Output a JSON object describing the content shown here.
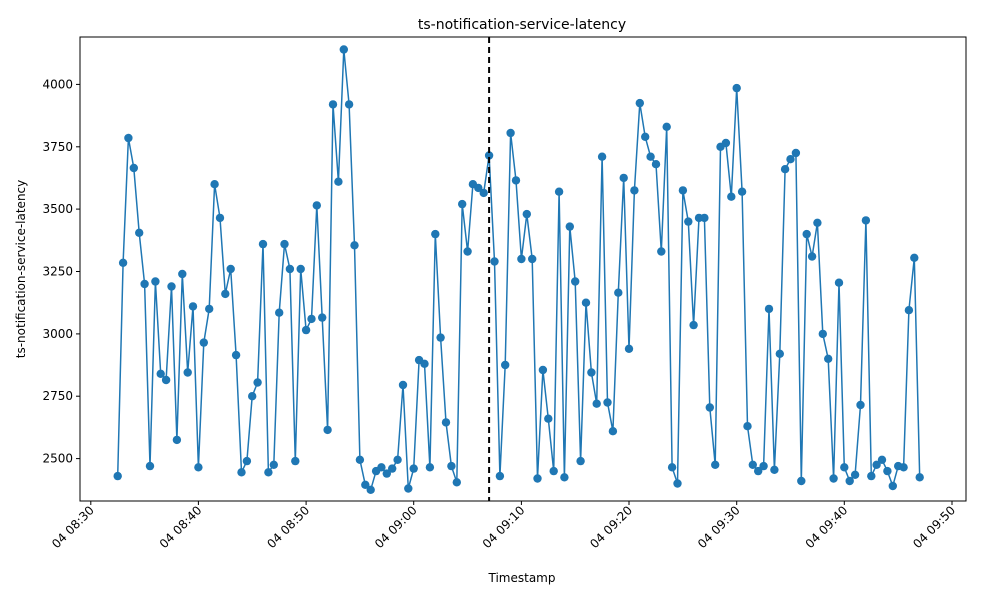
{
  "chart_data": {
    "type": "line",
    "title": "ts-notification-service-latency",
    "xlabel": "Timestamp",
    "ylabel": "ts-notification-service-latency",
    "x_ticks": [
      "04 08:30",
      "04 08:40",
      "04 08:50",
      "04 09:00",
      "04 09:10",
      "04 09:20",
      "04 09:30",
      "04 09:40",
      "04 09:50"
    ],
    "y_ticks": [
      2500,
      2750,
      3000,
      3250,
      3500,
      3750,
      4000
    ],
    "ylim": [
      2330,
      4190
    ],
    "xlim_minutes_after_0830": [
      -1,
      81.3
    ],
    "grid": false,
    "marker": "circle",
    "series_color": "#1f77b4",
    "vline": {
      "time": "04 09:07",
      "style": "dashed",
      "color": "#000000"
    },
    "series": [
      {
        "values": [
          [
            "04 08:32:30",
            2430
          ],
          [
            "04 08:33:00",
            3285
          ],
          [
            "04 08:33:30",
            3785
          ],
          [
            "04 08:34:00",
            3665
          ],
          [
            "04 08:34:30",
            3405
          ],
          [
            "04 08:35:00",
            3200
          ],
          [
            "04 08:35:30",
            2470
          ],
          [
            "04 08:36:00",
            3210
          ],
          [
            "04 08:36:30",
            2840
          ],
          [
            "04 08:37:00",
            2815
          ],
          [
            "04 08:37:30",
            3190
          ],
          [
            "04 08:38:00",
            2575
          ],
          [
            "04 08:38:30",
            3240
          ],
          [
            "04 08:39:00",
            2845
          ],
          [
            "04 08:39:30",
            3110
          ],
          [
            "04 08:40:00",
            2465
          ],
          [
            "04 08:40:30",
            2965
          ],
          [
            "04 08:41:00",
            3100
          ],
          [
            "04 08:41:30",
            3600
          ],
          [
            "04 08:42:00",
            3465
          ],
          [
            "04 08:42:30",
            3160
          ],
          [
            "04 08:43:00",
            3260
          ],
          [
            "04 08:43:30",
            2915
          ],
          [
            "04 08:44:00",
            2445
          ],
          [
            "04 08:44:30",
            2490
          ],
          [
            "04 08:45:00",
            2750
          ],
          [
            "04 08:45:30",
            2805
          ],
          [
            "04 08:46:00",
            3360
          ],
          [
            "04 08:46:30",
            2445
          ],
          [
            "04 08:47:00",
            2475
          ],
          [
            "04 08:47:30",
            3085
          ],
          [
            "04 08:48:00",
            3360
          ],
          [
            "04 08:48:30",
            3260
          ],
          [
            "04 08:49:00",
            2490
          ],
          [
            "04 08:49:30",
            3260
          ],
          [
            "04 08:50:00",
            3015
          ],
          [
            "04 08:50:30",
            3060
          ],
          [
            "04 08:51:00",
            3515
          ],
          [
            "04 08:51:30",
            3065
          ],
          [
            "04 08:52:00",
            2615
          ],
          [
            "04 08:52:30",
            3920
          ],
          [
            "04 08:53:00",
            3610
          ],
          [
            "04 08:53:30",
            4140
          ],
          [
            "04 08:54:00",
            3920
          ],
          [
            "04 08:54:30",
            3355
          ],
          [
            "04 08:55:00",
            2495
          ],
          [
            "04 08:55:30",
            2395
          ],
          [
            "04 08:56:00",
            2375
          ],
          [
            "04 08:56:30",
            2450
          ],
          [
            "04 08:57:00",
            2465
          ],
          [
            "04 08:57:30",
            2440
          ],
          [
            "04 08:58:00",
            2460
          ],
          [
            "04 08:58:30",
            2495
          ],
          [
            "04 08:59:00",
            2795
          ],
          [
            "04 08:59:30",
            2380
          ],
          [
            "04 09:00:00",
            2460
          ],
          [
            "04 09:00:30",
            2895
          ],
          [
            "04 09:01:00",
            2880
          ],
          [
            "04 09:01:30",
            2465
          ],
          [
            "04 09:02:00",
            3400
          ],
          [
            "04 09:02:30",
            2985
          ],
          [
            "04 09:03:00",
            2645
          ],
          [
            "04 09:03:30",
            2470
          ],
          [
            "04 09:04:00",
            2405
          ],
          [
            "04 09:04:30",
            3520
          ],
          [
            "04 09:05:00",
            3330
          ],
          [
            "04 09:05:30",
            3600
          ],
          [
            "04 09:06:00",
            3585
          ],
          [
            "04 09:06:30",
            3565
          ],
          [
            "04 09:07:00",
            3715
          ],
          [
            "04 09:07:30",
            3290
          ],
          [
            "04 09:08:00",
            2430
          ],
          [
            "04 09:08:30",
            2875
          ],
          [
            "04 09:09:00",
            3805
          ],
          [
            "04 09:09:30",
            3615
          ],
          [
            "04 09:10:00",
            3300
          ],
          [
            "04 09:10:30",
            3480
          ],
          [
            "04 09:11:00",
            3300
          ],
          [
            "04 09:11:30",
            2420
          ],
          [
            "04 09:12:00",
            2855
          ],
          [
            "04 09:12:30",
            2660
          ],
          [
            "04 09:13:00",
            2450
          ],
          [
            "04 09:13:30",
            3570
          ],
          [
            "04 09:14:00",
            2425
          ],
          [
            "04 09:14:30",
            3430
          ],
          [
            "04 09:15:00",
            3210
          ],
          [
            "04 09:15:30",
            2490
          ],
          [
            "04 09:16:00",
            3125
          ],
          [
            "04 09:16:30",
            2845
          ],
          [
            "04 09:17:00",
            2720
          ],
          [
            "04 09:17:30",
            3710
          ],
          [
            "04 09:18:00",
            2725
          ],
          [
            "04 09:18:30",
            2610
          ],
          [
            "04 09:19:00",
            3165
          ],
          [
            "04 09:19:30",
            3625
          ],
          [
            "04 09:20:00",
            2940
          ],
          [
            "04 09:20:30",
            3575
          ],
          [
            "04 09:21:00",
            3925
          ],
          [
            "04 09:21:30",
            3790
          ],
          [
            "04 09:22:00",
            3710
          ],
          [
            "04 09:22:30",
            3680
          ],
          [
            "04 09:23:00",
            3330
          ],
          [
            "04 09:23:30",
            3830
          ],
          [
            "04 09:24:00",
            2465
          ],
          [
            "04 09:24:30",
            2400
          ],
          [
            "04 09:25:00",
            3575
          ],
          [
            "04 09:25:30",
            3450
          ],
          [
            "04 09:26:00",
            3035
          ],
          [
            "04 09:26:30",
            3465
          ],
          [
            "04 09:27:00",
            3465
          ],
          [
            "04 09:27:30",
            2705
          ],
          [
            "04 09:28:00",
            2475
          ],
          [
            "04 09:28:30",
            3750
          ],
          [
            "04 09:29:00",
            3765
          ],
          [
            "04 09:29:30",
            3550
          ],
          [
            "04 09:30:00",
            3985
          ],
          [
            "04 09:30:30",
            3570
          ],
          [
            "04 09:31:00",
            2630
          ],
          [
            "04 09:31:30",
            2475
          ],
          [
            "04 09:32:00",
            2450
          ],
          [
            "04 09:32:30",
            2470
          ],
          [
            "04 09:33:00",
            3100
          ],
          [
            "04 09:33:30",
            2455
          ],
          [
            "04 09:34:00",
            2920
          ],
          [
            "04 09:34:30",
            3660
          ],
          [
            "04 09:35:00",
            3700
          ],
          [
            "04 09:35:30",
            3725
          ],
          [
            "04 09:36:00",
            2410
          ],
          [
            "04 09:36:30",
            3400
          ],
          [
            "04 09:37:00",
            3310
          ],
          [
            "04 09:37:30",
            3445
          ],
          [
            "04 09:38:00",
            3000
          ],
          [
            "04 09:38:30",
            2900
          ],
          [
            "04 09:39:00",
            2420
          ],
          [
            "04 09:39:30",
            3205
          ],
          [
            "04 09:40:00",
            2465
          ],
          [
            "04 09:40:30",
            2410
          ],
          [
            "04 09:41:00",
            2435
          ],
          [
            "04 09:41:30",
            2715
          ],
          [
            "04 09:42:00",
            3455
          ],
          [
            "04 09:42:30",
            2430
          ],
          [
            "04 09:43:00",
            2475
          ],
          [
            "04 09:43:30",
            2495
          ],
          [
            "04 09:44:00",
            2450
          ],
          [
            "04 09:44:30",
            2390
          ],
          [
            "04 09:45:00",
            2470
          ],
          [
            "04 09:45:30",
            2465
          ],
          [
            "04 09:46:00",
            3095
          ],
          [
            "04 09:46:30",
            3305
          ],
          [
            "04 09:47:00",
            2425
          ]
        ]
      }
    ]
  }
}
